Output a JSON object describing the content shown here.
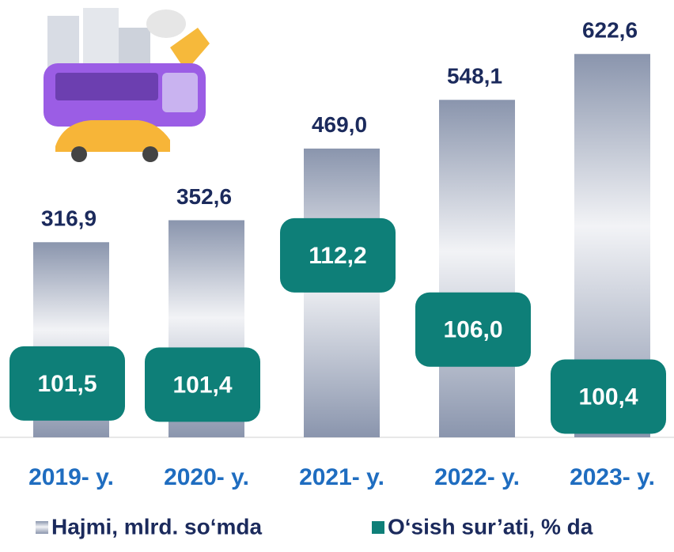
{
  "chart_data": {
    "type": "bar",
    "categories": [
      "2019- y.",
      "2020- y.",
      "2021- y.",
      "2022- y.",
      "2023- y."
    ],
    "series": [
      {
        "name": "Hajmi, mlrd. so‘mda",
        "color": "#8a95ad",
        "values": [
          316.9,
          352.6,
          469.0,
          548.1,
          622.6
        ],
        "value_labels": [
          "316,9",
          "352,6",
          "469,0",
          "548,1",
          "622,6"
        ]
      },
      {
        "name": "O‘sish sur’ati, % da",
        "color": "#0e7f78",
        "axis": "y2",
        "values": [
          101.5,
          101.4,
          112.2,
          106.0,
          100.4
        ],
        "value_labels": [
          "101,5",
          "101,4",
          "112,2",
          "106,0",
          "100,4"
        ]
      }
    ],
    "ylim": [
      0,
      700
    ],
    "y2lim": [
      97,
      133
    ],
    "legend": "bottom"
  }
}
